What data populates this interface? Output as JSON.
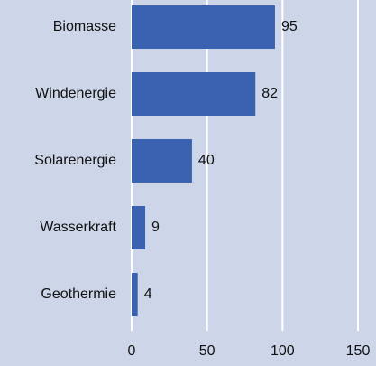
{
  "chart_data": {
    "type": "bar",
    "orientation": "horizontal",
    "categories": [
      "Biomasse",
      "Windenergie",
      "Solarenergie",
      "Wasserkraft",
      "Geothermie"
    ],
    "values": [
      95,
      82,
      40,
      9,
      4
    ],
    "color": "#3a62b0",
    "xlim": [
      0,
      150
    ],
    "xticks": [
      0,
      50,
      100,
      150
    ],
    "grid": true
  }
}
